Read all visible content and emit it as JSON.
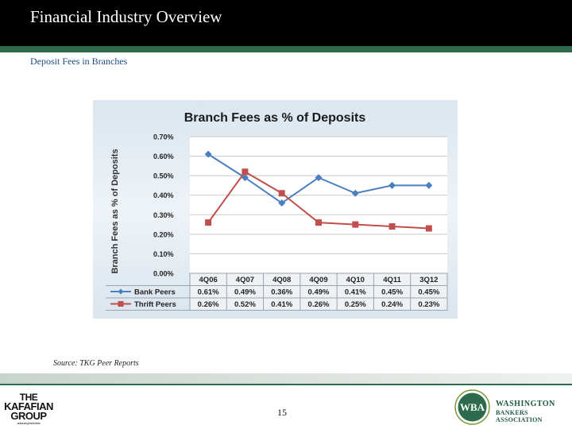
{
  "header": {
    "title": "Financial Industry Overview",
    "subtitle": "Deposit Fees in Branches"
  },
  "chart_data": {
    "type": "line",
    "title": "Branch Fees as % of Deposits",
    "ylabel": "Branch Fees as % of Deposits",
    "xlabel": "",
    "categories": [
      "4Q06",
      "4Q07",
      "4Q08",
      "4Q09",
      "4Q10",
      "4Q11",
      "3Q12"
    ],
    "yticks": [
      "0.70%",
      "0.60%",
      "0.50%",
      "0.40%",
      "0.30%",
      "0.20%",
      "0.10%",
      "0.00%"
    ],
    "ylim": [
      0,
      0.7
    ],
    "grid": true,
    "legend_placement": "data-table-left",
    "series": [
      {
        "name": "Bank Peers",
        "values": [
          0.61,
          0.49,
          0.36,
          0.49,
          0.41,
          0.45,
          0.45
        ],
        "labels": [
          "0.61%",
          "0.49%",
          "0.36%",
          "0.49%",
          "0.41%",
          "0.45%",
          "0.45%"
        ],
        "color": "#4a7fc0",
        "marker": "diamond"
      },
      {
        "name": "Thrift Peers",
        "values": [
          0.26,
          0.52,
          0.41,
          0.26,
          0.25,
          0.24,
          0.23
        ],
        "labels": [
          "0.26%",
          "0.52%",
          "0.41%",
          "0.26%",
          "0.25%",
          "0.24%",
          "0.23%"
        ],
        "color": "#c0504d",
        "marker": "square"
      }
    ]
  },
  "source": "Source: TKG Peer Reports",
  "footer": {
    "page_number": "15",
    "left_logo": {
      "line1": "THE",
      "line2": "KAFAFIAN",
      "line3": "GROUP",
      "tagline": "advancing bank ideas"
    },
    "right_logo": {
      "badge": "WBA",
      "line1": "WASHINGTON",
      "line2": "BANKERS ASSOCIATION"
    }
  },
  "colors": {
    "title_bar": "#000000",
    "accent_green": "#2e6b4e",
    "subtitle_blue": "#1a4a80"
  }
}
